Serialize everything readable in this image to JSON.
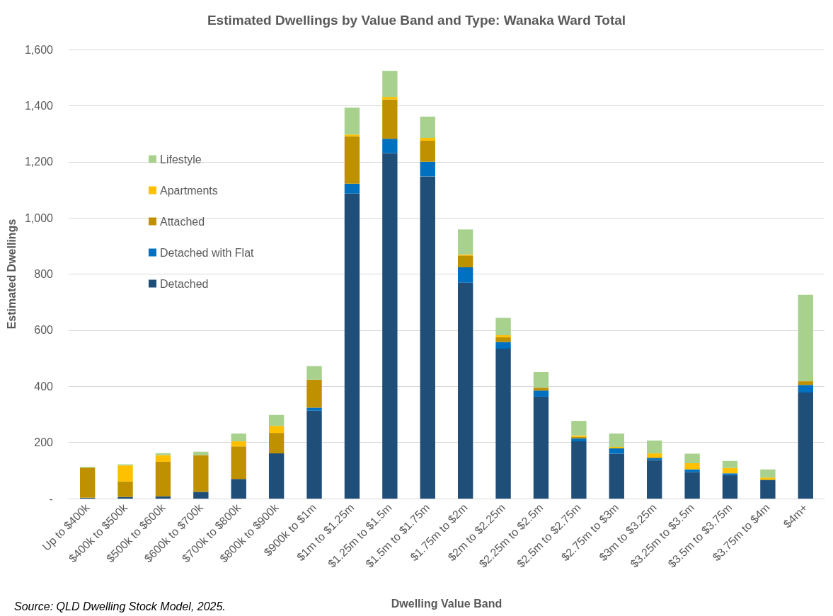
{
  "chart_data": {
    "type": "bar",
    "title": "Estimated Dwellings by Value Band and Type: Wanaka Ward Total",
    "xlabel": "Dwelling Value Band",
    "ylabel": "Estimated Dwellings",
    "annotations": [
      "Source: QLD Dwelling Stock Model, 2025."
    ],
    "categories": [
      "Up to $400k",
      "$400k to $500k",
      "$500k to $600k",
      "$600k to $700k",
      "$700k to $800k",
      "$800k to $900k",
      "$900k to $1m",
      "$1m to $1.25m",
      "$1.25m to $1.5m",
      "$1.5m to $1.75m",
      "$1.75m to $2m",
      "$2m to $2.25m",
      "$2.25m to $2.5m",
      "$2.5m to $2.75m",
      "$2.75m to $3m",
      "$3m to $3.25m",
      "$3.25m to $3.5m",
      "$3.5m to $3.75m",
      "$3.75m to $4m",
      "$4m+"
    ],
    "stacked": true,
    "series": [
      {
        "name": "Detached",
        "color": "#1f4e79",
        "values": [
          3,
          6,
          8,
          24,
          70,
          161,
          313,
          1087,
          1231,
          1148,
          769,
          534,
          363,
          204,
          160,
          137,
          94,
          84,
          67,
          378
        ]
      },
      {
        "name": "Detached with Flat",
        "color": "#0070c0",
        "values": [
          0,
          0,
          0,
          0,
          0,
          0,
          11,
          35,
          51,
          52,
          55,
          24,
          22,
          11,
          19,
          7,
          10,
          6,
          null,
          27
        ]
      },
      {
        "name": "Attached",
        "color": "#bf9000",
        "values": [
          107,
          55,
          123,
          131,
          116,
          73,
          100,
          169,
          140,
          75,
          42,
          17,
          10,
          5,
          0,
          4,
          0,
          0,
          0,
          13
        ]
      },
      {
        "name": "Apartments",
        "color": "#ffc000",
        "values": [
          null,
          57,
          24,
          0,
          18,
          25,
          0,
          6,
          9,
          10,
          4,
          7,
          0,
          5,
          5,
          13,
          22,
          19,
          8,
          0
        ]
      },
      {
        "name": "Lifestyle",
        "color": "#a9d18e",
        "values": [
          3,
          4,
          7,
          12,
          28,
          39,
          48,
          96,
          93,
          76,
          89,
          62,
          56,
          52,
          48,
          46,
          34,
          25,
          29,
          308
        ]
      }
    ],
    "ylim": [
      0,
      1600
    ],
    "yticks": [
      {
        "value": 0,
        "label": "-"
      },
      200,
      400,
      600,
      800,
      {
        "value": 1000,
        "label": "1,000"
      },
      {
        "value": 1200,
        "label": "1,200"
      },
      {
        "value": 1400,
        "label": "1,400"
      },
      {
        "value": 1600,
        "label": "1,600"
      }
    ],
    "grid": "y",
    "legend": "top left"
  }
}
